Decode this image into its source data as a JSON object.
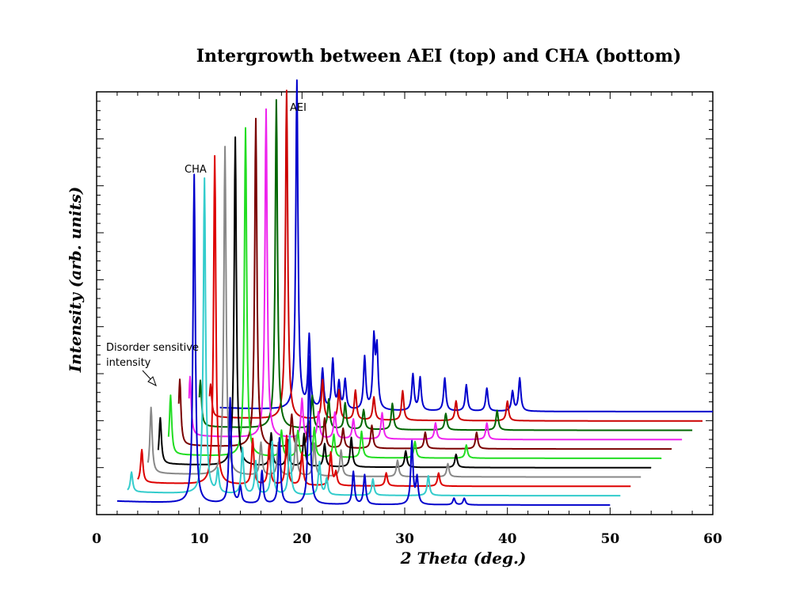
{
  "chart_data": {
    "type": "line",
    "title": "Intergrowth between AEI (top) and CHA (bottom)",
    "xlabel": "2 Theta (deg.)",
    "ylabel": "Intensity (arb. units)",
    "xlim": [
      0,
      60
    ],
    "x_ticks": [
      0,
      10,
      20,
      30,
      40,
      50,
      60
    ],
    "y_scale": "arbitrary, stacked with horizontal and vertical offsets",
    "grid": false,
    "legend": "none",
    "annotations": {
      "cha": "CHA",
      "aei": "AEI",
      "disorder_line1": "Disorder sensitive",
      "disorder_line2": "intensity"
    },
    "series": [
      {
        "color": "#0000cc",
        "x_range": [
          2,
          50
        ],
        "peaks": [
          [
            9.5,
            1.0
          ],
          [
            13.0,
            0.32
          ],
          [
            14.0,
            0.05
          ],
          [
            16.1,
            0.1
          ],
          [
            17.8,
            0.2
          ],
          [
            20.7,
            0.45
          ],
          [
            25.0,
            0.1
          ],
          [
            26.1,
            0.09
          ],
          [
            30.7,
            0.19
          ],
          [
            31.2,
            0.08
          ],
          [
            34.8,
            0.02
          ],
          [
            35.8,
            0.02
          ]
        ]
      },
      {
        "color": "#33cccc",
        "x_range": [
          3,
          51
        ],
        "peaks": [
          [
            3.4,
            0.06
          ],
          [
            10.5,
            0.96
          ],
          [
            11.8,
            0.07
          ],
          [
            14.2,
            0.14
          ],
          [
            15.5,
            0.1
          ],
          [
            17.1,
            0.16
          ],
          [
            18.8,
            0.18
          ],
          [
            21.7,
            0.1
          ],
          [
            22.4,
            0.05
          ],
          [
            26.9,
            0.05
          ],
          [
            32.3,
            0.06
          ]
        ]
      },
      {
        "color": "#dd0000",
        "x_range": [
          4,
          52
        ],
        "peaks": [
          [
            4.4,
            0.1
          ],
          [
            11.5,
            1.0
          ],
          [
            15.2,
            0.14
          ],
          [
            16.8,
            0.12
          ],
          [
            18.5,
            0.15
          ],
          [
            20.0,
            0.1
          ],
          [
            22.8,
            0.1
          ],
          [
            23.3,
            0.04
          ],
          [
            28.2,
            0.04
          ],
          [
            33.3,
            0.04
          ]
        ]
      },
      {
        "color": "#888888",
        "x_range": [
          5,
          53
        ],
        "peaks": [
          [
            5.3,
            0.2
          ],
          [
            12.5,
            1.0
          ],
          [
            16.0,
            0.1
          ],
          [
            17.7,
            0.1
          ],
          [
            19.4,
            0.12
          ],
          [
            21.2,
            0.1
          ],
          [
            23.8,
            0.08
          ],
          [
            29.3,
            0.05
          ],
          [
            34.2,
            0.04
          ]
        ]
      },
      {
        "color": "#000000",
        "x_range": [
          6,
          54
        ],
        "peaks": [
          [
            6.2,
            0.14
          ],
          [
            13.5,
            1.0
          ],
          [
            17.0,
            0.1
          ],
          [
            18.6,
            0.08
          ],
          [
            20.2,
            0.1
          ],
          [
            22.2,
            0.07
          ],
          [
            24.8,
            0.09
          ],
          [
            30.1,
            0.05
          ],
          [
            35.0,
            0.04
          ]
        ]
      },
      {
        "color": "#22dd22",
        "x_range": [
          7,
          55
        ],
        "peaks": [
          [
            7.2,
            0.18
          ],
          [
            14.5,
            1.0
          ],
          [
            18.0,
            0.08
          ],
          [
            19.6,
            0.08
          ],
          [
            21.2,
            0.09
          ],
          [
            23.1,
            0.07
          ],
          [
            25.8,
            0.08
          ],
          [
            31.0,
            0.05
          ],
          [
            36.0,
            0.04
          ]
        ]
      },
      {
        "color": "#7a0000",
        "x_range": [
          8,
          56
        ],
        "peaks": [
          [
            8.1,
            0.2
          ],
          [
            15.5,
            1.0
          ],
          [
            19.0,
            0.1
          ],
          [
            20.6,
            0.08
          ],
          [
            22.2,
            0.09
          ],
          [
            24.0,
            0.06
          ],
          [
            26.8,
            0.07
          ],
          [
            32.0,
            0.05
          ],
          [
            37.0,
            0.05
          ]
        ]
      },
      {
        "color": "#ee22ee",
        "x_range": [
          9,
          57
        ],
        "peaks": [
          [
            9.1,
            0.18
          ],
          [
            16.5,
            1.0
          ],
          [
            20.0,
            0.12
          ],
          [
            21.6,
            0.08
          ],
          [
            23.2,
            0.08
          ],
          [
            25.0,
            0.06
          ],
          [
            27.8,
            0.08
          ],
          [
            33.0,
            0.05
          ],
          [
            38.0,
            0.05
          ]
        ]
      },
      {
        "color": "#006600",
        "x_range": [
          10,
          58
        ],
        "peaks": [
          [
            10.1,
            0.14
          ],
          [
            17.5,
            1.0
          ],
          [
            21.0,
            0.1
          ],
          [
            22.6,
            0.09
          ],
          [
            24.2,
            0.08
          ],
          [
            26.0,
            0.06
          ],
          [
            28.8,
            0.08
          ],
          [
            34.0,
            0.05
          ],
          [
            39.0,
            0.06
          ]
        ]
      },
      {
        "color": "#cc0000",
        "x_range": [
          11,
          59
        ],
        "peaks": [
          [
            11.1,
            0.1
          ],
          [
            18.5,
            1.0
          ],
          [
            22.0,
            0.12
          ],
          [
            23.6,
            0.09
          ],
          [
            25.2,
            0.09
          ],
          [
            27.0,
            0.07
          ],
          [
            29.8,
            0.09
          ],
          [
            35.0,
            0.06
          ],
          [
            40.0,
            0.06
          ]
        ]
      },
      {
        "color": "#0000cc",
        "x_range": [
          12,
          60
        ],
        "peaks": [
          [
            19.5,
            1.0
          ],
          [
            20.7,
            0.22
          ],
          [
            22.0,
            0.12
          ],
          [
            23.0,
            0.15
          ],
          [
            23.6,
            0.08
          ],
          [
            24.2,
            0.09
          ],
          [
            26.1,
            0.16
          ],
          [
            27.0,
            0.21
          ],
          [
            27.3,
            0.18
          ],
          [
            30.8,
            0.11
          ],
          [
            31.5,
            0.1
          ],
          [
            33.9,
            0.1
          ],
          [
            36.0,
            0.08
          ],
          [
            38.0,
            0.07
          ],
          [
            40.5,
            0.06
          ],
          [
            41.2,
            0.1
          ]
        ]
      }
    ]
  }
}
